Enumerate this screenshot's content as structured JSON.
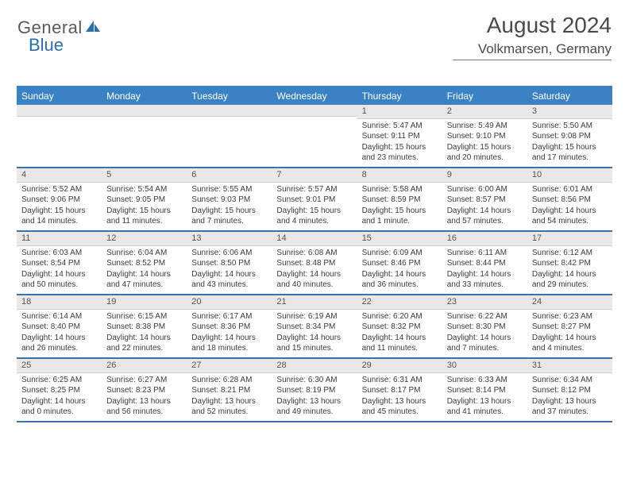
{
  "logo": {
    "text1": "General",
    "text2": "Blue"
  },
  "header": {
    "title": "August 2024",
    "location": "Volkmarsen, Germany"
  },
  "colors": {
    "brand_blue": "#3b82c4",
    "header_bg": "#3b82c4",
    "header_text": "#ffffff",
    "row_border": "#3b72a8",
    "daybar_bg": "#e8e8e8",
    "body_text": "#3a3a3a"
  },
  "dayHeaders": [
    "Sunday",
    "Monday",
    "Tuesday",
    "Wednesday",
    "Thursday",
    "Friday",
    "Saturday"
  ],
  "weeks": [
    [
      {
        "n": "",
        "sr": "",
        "ss": "",
        "dl": ""
      },
      {
        "n": "",
        "sr": "",
        "ss": "",
        "dl": ""
      },
      {
        "n": "",
        "sr": "",
        "ss": "",
        "dl": ""
      },
      {
        "n": "",
        "sr": "",
        "ss": "",
        "dl": ""
      },
      {
        "n": "1",
        "sr": "Sunrise: 5:47 AM",
        "ss": "Sunset: 9:11 PM",
        "dl": "Daylight: 15 hours and 23 minutes."
      },
      {
        "n": "2",
        "sr": "Sunrise: 5:49 AM",
        "ss": "Sunset: 9:10 PM",
        "dl": "Daylight: 15 hours and 20 minutes."
      },
      {
        "n": "3",
        "sr": "Sunrise: 5:50 AM",
        "ss": "Sunset: 9:08 PM",
        "dl": "Daylight: 15 hours and 17 minutes."
      }
    ],
    [
      {
        "n": "4",
        "sr": "Sunrise: 5:52 AM",
        "ss": "Sunset: 9:06 PM",
        "dl": "Daylight: 15 hours and 14 minutes."
      },
      {
        "n": "5",
        "sr": "Sunrise: 5:54 AM",
        "ss": "Sunset: 9:05 PM",
        "dl": "Daylight: 15 hours and 11 minutes."
      },
      {
        "n": "6",
        "sr": "Sunrise: 5:55 AM",
        "ss": "Sunset: 9:03 PM",
        "dl": "Daylight: 15 hours and 7 minutes."
      },
      {
        "n": "7",
        "sr": "Sunrise: 5:57 AM",
        "ss": "Sunset: 9:01 PM",
        "dl": "Daylight: 15 hours and 4 minutes."
      },
      {
        "n": "8",
        "sr": "Sunrise: 5:58 AM",
        "ss": "Sunset: 8:59 PM",
        "dl": "Daylight: 15 hours and 1 minute."
      },
      {
        "n": "9",
        "sr": "Sunrise: 6:00 AM",
        "ss": "Sunset: 8:57 PM",
        "dl": "Daylight: 14 hours and 57 minutes."
      },
      {
        "n": "10",
        "sr": "Sunrise: 6:01 AM",
        "ss": "Sunset: 8:56 PM",
        "dl": "Daylight: 14 hours and 54 minutes."
      }
    ],
    [
      {
        "n": "11",
        "sr": "Sunrise: 6:03 AM",
        "ss": "Sunset: 8:54 PM",
        "dl": "Daylight: 14 hours and 50 minutes."
      },
      {
        "n": "12",
        "sr": "Sunrise: 6:04 AM",
        "ss": "Sunset: 8:52 PM",
        "dl": "Daylight: 14 hours and 47 minutes."
      },
      {
        "n": "13",
        "sr": "Sunrise: 6:06 AM",
        "ss": "Sunset: 8:50 PM",
        "dl": "Daylight: 14 hours and 43 minutes."
      },
      {
        "n": "14",
        "sr": "Sunrise: 6:08 AM",
        "ss": "Sunset: 8:48 PM",
        "dl": "Daylight: 14 hours and 40 minutes."
      },
      {
        "n": "15",
        "sr": "Sunrise: 6:09 AM",
        "ss": "Sunset: 8:46 PM",
        "dl": "Daylight: 14 hours and 36 minutes."
      },
      {
        "n": "16",
        "sr": "Sunrise: 6:11 AM",
        "ss": "Sunset: 8:44 PM",
        "dl": "Daylight: 14 hours and 33 minutes."
      },
      {
        "n": "17",
        "sr": "Sunrise: 6:12 AM",
        "ss": "Sunset: 8:42 PM",
        "dl": "Daylight: 14 hours and 29 minutes."
      }
    ],
    [
      {
        "n": "18",
        "sr": "Sunrise: 6:14 AM",
        "ss": "Sunset: 8:40 PM",
        "dl": "Daylight: 14 hours and 26 minutes."
      },
      {
        "n": "19",
        "sr": "Sunrise: 6:15 AM",
        "ss": "Sunset: 8:38 PM",
        "dl": "Daylight: 14 hours and 22 minutes."
      },
      {
        "n": "20",
        "sr": "Sunrise: 6:17 AM",
        "ss": "Sunset: 8:36 PM",
        "dl": "Daylight: 14 hours and 18 minutes."
      },
      {
        "n": "21",
        "sr": "Sunrise: 6:19 AM",
        "ss": "Sunset: 8:34 PM",
        "dl": "Daylight: 14 hours and 15 minutes."
      },
      {
        "n": "22",
        "sr": "Sunrise: 6:20 AM",
        "ss": "Sunset: 8:32 PM",
        "dl": "Daylight: 14 hours and 11 minutes."
      },
      {
        "n": "23",
        "sr": "Sunrise: 6:22 AM",
        "ss": "Sunset: 8:30 PM",
        "dl": "Daylight: 14 hours and 7 minutes."
      },
      {
        "n": "24",
        "sr": "Sunrise: 6:23 AM",
        "ss": "Sunset: 8:27 PM",
        "dl": "Daylight: 14 hours and 4 minutes."
      }
    ],
    [
      {
        "n": "25",
        "sr": "Sunrise: 6:25 AM",
        "ss": "Sunset: 8:25 PM",
        "dl": "Daylight: 14 hours and 0 minutes."
      },
      {
        "n": "26",
        "sr": "Sunrise: 6:27 AM",
        "ss": "Sunset: 8:23 PM",
        "dl": "Daylight: 13 hours and 56 minutes."
      },
      {
        "n": "27",
        "sr": "Sunrise: 6:28 AM",
        "ss": "Sunset: 8:21 PM",
        "dl": "Daylight: 13 hours and 52 minutes."
      },
      {
        "n": "28",
        "sr": "Sunrise: 6:30 AM",
        "ss": "Sunset: 8:19 PM",
        "dl": "Daylight: 13 hours and 49 minutes."
      },
      {
        "n": "29",
        "sr": "Sunrise: 6:31 AM",
        "ss": "Sunset: 8:17 PM",
        "dl": "Daylight: 13 hours and 45 minutes."
      },
      {
        "n": "30",
        "sr": "Sunrise: 6:33 AM",
        "ss": "Sunset: 8:14 PM",
        "dl": "Daylight: 13 hours and 41 minutes."
      },
      {
        "n": "31",
        "sr": "Sunrise: 6:34 AM",
        "ss": "Sunset: 8:12 PM",
        "dl": "Daylight: 13 hours and 37 minutes."
      }
    ]
  ]
}
